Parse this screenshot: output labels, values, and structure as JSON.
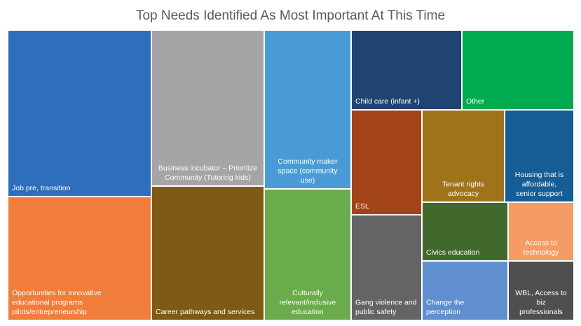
{
  "chart_data": {
    "type": "treemap",
    "title": "Top Needs Identified As Most Important At This Time",
    "items": [
      {
        "label": "Job pre, transition",
        "color": "#2F6EBA"
      },
      {
        "label": "Opportunities for innovative educational programs pilots/entrepreneurship",
        "color": "#F07E3A"
      },
      {
        "label": "Business incubator – Prioritize Community (Tutoring kids)",
        "color": "#A5A5A5"
      },
      {
        "label": "Career pathways and services",
        "color": "#7E5A14"
      },
      {
        "label": "Community maker space (community use)",
        "color": "#4A9BD5"
      },
      {
        "label": "Culturally relevant/inclusive education",
        "color": "#6AAB4B"
      },
      {
        "label": "Child care (infant +)",
        "color": "#1F4472"
      },
      {
        "label": "Other",
        "color": "#00AA4F"
      },
      {
        "label": "ESL",
        "color": "#A24418"
      },
      {
        "label": "Gang violence and public safety",
        "color": "#646464"
      },
      {
        "label": "Tenant rights advocacy",
        "color": "#9E741A"
      },
      {
        "label": "Housing that is affordable, senior support",
        "color": "#165D95"
      },
      {
        "label": "Civics education",
        "color": "#41692D"
      },
      {
        "label": "Access to technology",
        "color": "#F59B64"
      },
      {
        "label": "Change the perception",
        "color": "#5F8FCE"
      },
      {
        "label": "WBL, Access to biz professionals",
        "color": "#4F4F4F"
      }
    ]
  }
}
